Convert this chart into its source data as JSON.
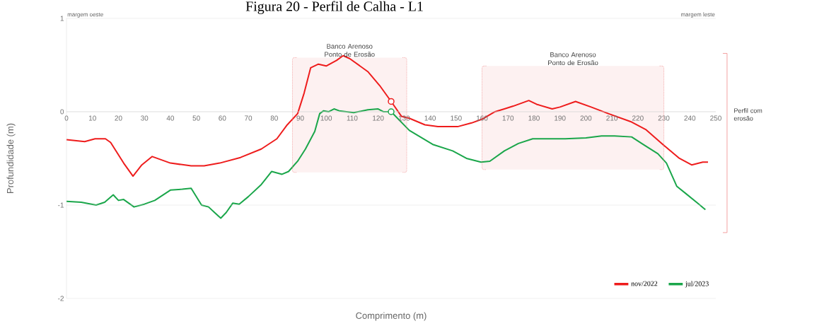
{
  "chart_data": {
    "type": "line",
    "title": "Figura 20 - Perfil de Calha - L1",
    "xlabel": "Comprimento (m)",
    "ylabel": "Profundidade (m)",
    "xlim": [
      0,
      250
    ],
    "ylim": [
      -2,
      1
    ],
    "xticks": [
      0,
      10,
      20,
      30,
      40,
      50,
      60,
      70,
      80,
      90,
      100,
      110,
      120,
      130,
      140,
      150,
      160,
      170,
      180,
      190,
      200,
      210,
      220,
      230,
      240,
      250
    ],
    "yticks": [
      -2,
      -1,
      0,
      1
    ],
    "grid": "y",
    "legend": "bottom right",
    "series": [
      {
        "name": "nov/2022",
        "color": "#ee1c1c",
        "x": [
          0,
          7,
          11,
          15,
          17,
          22,
          25.6,
          29,
          33,
          40,
          48,
          53,
          59,
          67,
          75,
          81,
          85,
          89,
          91.5,
          94,
          97,
          100,
          104,
          106.5,
          109,
          116,
          120.6,
          125,
          129,
          132,
          138,
          143,
          150.6,
          156,
          160,
          165,
          168.6,
          172,
          178,
          181,
          187,
          190,
          196,
          202,
          208.6,
          217.6,
          223,
          229.6,
          236,
          240.7,
          245,
          247
        ],
        "values": [
          -0.3,
          -0.32,
          -0.29,
          -0.29,
          -0.33,
          -0.55,
          -0.69,
          -0.57,
          -0.48,
          -0.55,
          -0.58,
          -0.58,
          -0.55,
          -0.49,
          -0.4,
          -0.29,
          -0.14,
          -0.02,
          0.2,
          0.47,
          0.51,
          0.49,
          0.55,
          0.6,
          0.57,
          0.43,
          0.28,
          0.11,
          -0.05,
          -0.07,
          -0.14,
          -0.16,
          -0.16,
          -0.12,
          -0.08,
          0,
          0.03,
          0.06,
          0.12,
          0.08,
          0.03,
          0.05,
          0.11,
          0.05,
          -0.02,
          -0.11,
          -0.19,
          -0.35,
          -0.5,
          -0.57,
          -0.54,
          -0.54
        ]
      },
      {
        "name": "jul/2023",
        "color": "#1aa64a",
        "x": [
          0,
          5.7,
          11.4,
          14.7,
          18,
          20,
          22,
          26,
          30,
          34,
          40,
          44.6,
          48,
          52,
          54.7,
          57,
          59.4,
          61.5,
          64,
          66.5,
          70,
          75,
          79,
          83,
          85.5,
          89,
          92,
          95.6,
          97.5,
          99,
          101,
          103,
          105,
          110.6,
          116,
          120,
          122,
          125,
          132,
          141,
          148.7,
          154,
          159.6,
          163,
          168.6,
          174,
          179.5,
          192,
          200,
          206,
          211,
          217.6,
          222,
          227.7,
          231,
          235,
          238.6,
          243,
          246
        ],
        "values": [
          -0.96,
          -0.97,
          -1.0,
          -0.97,
          -0.89,
          -0.95,
          -0.94,
          -1.02,
          -0.99,
          -0.95,
          -0.84,
          -0.83,
          -0.82,
          -1.0,
          -1.02,
          -1.08,
          -1.14,
          -1.08,
          -0.98,
          -0.99,
          -0.91,
          -0.78,
          -0.64,
          -0.67,
          -0.64,
          -0.53,
          -0.4,
          -0.21,
          -0.02,
          0.01,
          0,
          0.03,
          0.01,
          -0.01,
          0.02,
          0.03,
          0,
          0,
          -0.2,
          -0.35,
          -0.42,
          -0.5,
          -0.54,
          -0.53,
          -0.42,
          -0.34,
          -0.29,
          -0.29,
          -0.28,
          -0.26,
          -0.26,
          -0.27,
          -0.35,
          -0.45,
          -0.55,
          -0.8,
          -0.88,
          -0.98,
          -1.05
        ]
      },
      {
        "type": "scatter",
        "marker": "circle",
        "color": "#ee1c1c",
        "x": [
          125
        ],
        "values": [
          0.11
        ]
      },
      {
        "type": "scatter",
        "marker": "circle",
        "color": "#1aa64a",
        "x": [
          125
        ],
        "values": [
          0
        ]
      }
    ],
    "bands": [
      {
        "axis": "x",
        "from": 87,
        "to": 131,
        "label": "Banco Arenoso Ponto de Erosão",
        "color": "#fdf1f1"
      },
      {
        "axis": "x",
        "from": 160,
        "to": 230,
        "label": "Banco Arenoso Ponto de Erosão",
        "color": "#fdf1f1"
      }
    ],
    "annotations": [
      "margem oeste",
      "margem leste",
      "Perfil com erosão"
    ]
  }
}
